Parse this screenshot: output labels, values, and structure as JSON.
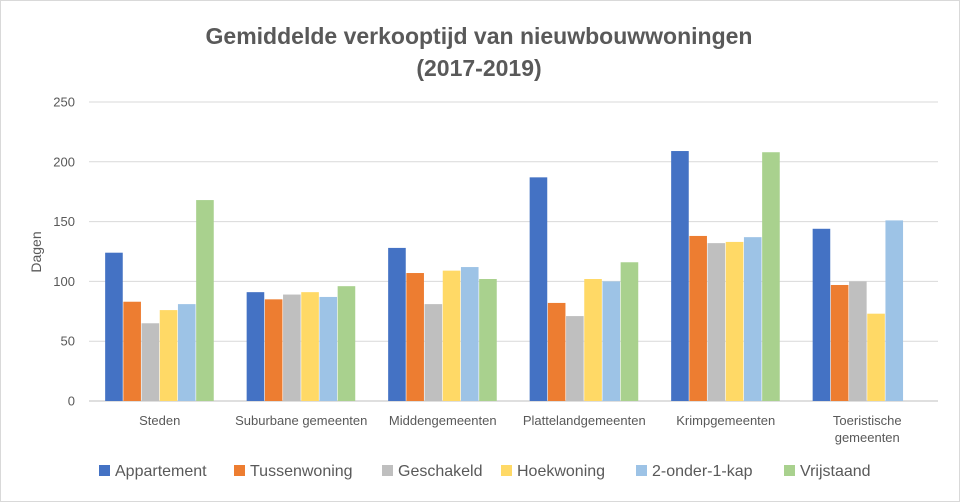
{
  "chart_data": {
    "type": "bar",
    "title": "Gemiddelde verkooptijd van nieuwbouwwoningen",
    "subtitle": "(2017-2019)",
    "xlabel": "",
    "ylabel": "Dagen",
    "ylim": [
      0,
      250
    ],
    "yticks": [
      0,
      50,
      100,
      150,
      200,
      250
    ],
    "grid": true,
    "legend_position": "bottom",
    "categories": [
      [
        "Steden"
      ],
      [
        "Suburbane gemeenten"
      ],
      [
        "Middengemeenten"
      ],
      [
        "Plattelandgemeenten"
      ],
      [
        "Krimpgemeenten"
      ],
      [
        "Toeristische",
        "gemeenten"
      ]
    ],
    "series": [
      {
        "name": "Appartement",
        "color": "#4472c4",
        "values": [
          124,
          91,
          128,
          187,
          209,
          144
        ]
      },
      {
        "name": "Tussenwoning",
        "color": "#ed7d31",
        "values": [
          83,
          85,
          107,
          82,
          138,
          97
        ]
      },
      {
        "name": "Geschakeld",
        "color": "#bfbfbf",
        "values": [
          65,
          89,
          81,
          71,
          132,
          100
        ]
      },
      {
        "name": "Hoekwoning",
        "color": "#ffd966",
        "values": [
          76,
          91,
          109,
          102,
          133,
          73
        ]
      },
      {
        "name": "2-onder-1-kap",
        "color": "#9dc3e6",
        "values": [
          81,
          87,
          112,
          100,
          137,
          151
        ]
      },
      {
        "name": "Vrijstaand",
        "color": "#a9d18e",
        "values": [
          168,
          96,
          102,
          116,
          208,
          null
        ]
      }
    ]
  }
}
